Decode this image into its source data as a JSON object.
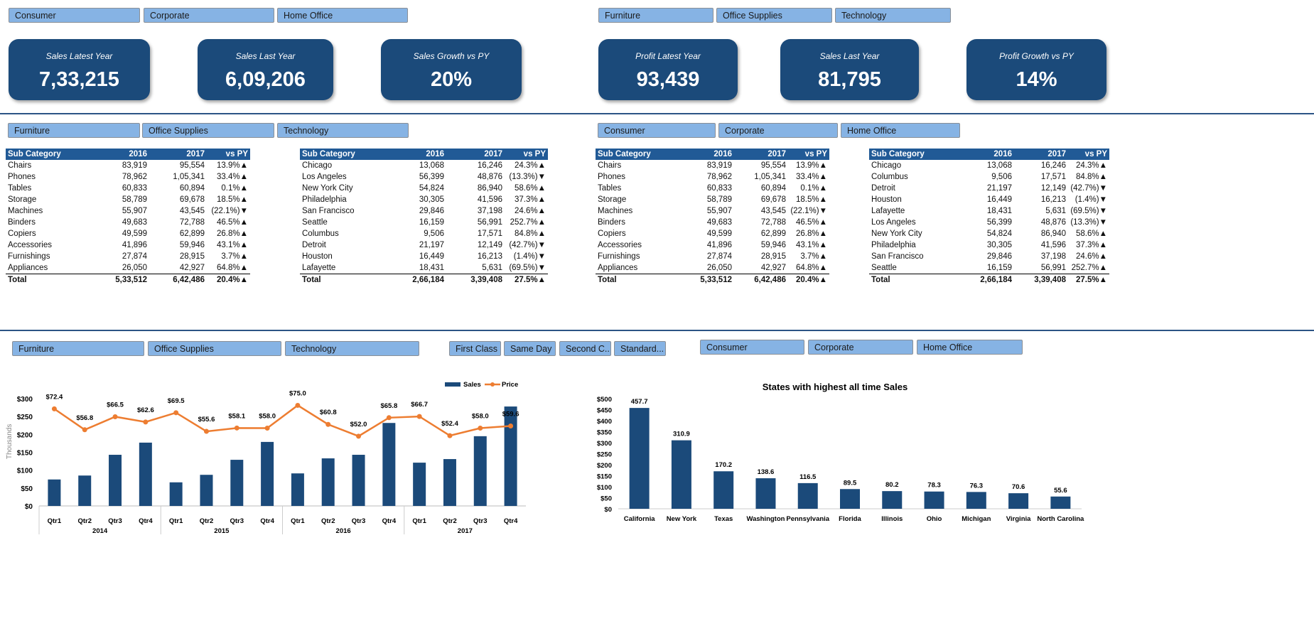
{
  "slicers": {
    "top_segment": [
      "Consumer",
      "Corporate",
      "Home Office"
    ],
    "top_category": [
      "Furniture",
      "Office Supplies",
      "Technology"
    ],
    "mid_category": [
      "Furniture",
      "Office Supplies",
      "Technology"
    ],
    "mid_segment": [
      "Consumer",
      "Corporate",
      "Home Office"
    ],
    "bottom_category": [
      "Furniture",
      "Office Supplies",
      "Technology"
    ],
    "ship_mode": [
      "First Class",
      "Same Day",
      "Second C...",
      "Standard..."
    ],
    "bottom_segment": [
      "Consumer",
      "Corporate",
      "Home Office"
    ]
  },
  "kpis": [
    {
      "title": "Sales Latest Year",
      "value": "7,33,215"
    },
    {
      "title": "Sales Last Year",
      "value": "6,09,206"
    },
    {
      "title": "Sales Growth vs PY",
      "value": "20%"
    },
    {
      "title": "Profit Latest Year",
      "value": "93,439"
    },
    {
      "title": "Sales Last Year",
      "value": "81,795"
    },
    {
      "title": "Profit Growth vs PY",
      "value": "14%"
    }
  ],
  "colors": {
    "card": "#1b4a7a",
    "header": "#215a96",
    "slicer": "#86b3e4",
    "bar": "#1b4a7a",
    "line": "#ed7d31",
    "positive": "#1a1aff",
    "negative": "#ff1a1a"
  },
  "tables": [
    {
      "headers": [
        "Sub Category",
        "2016",
        "2017",
        "vs PY"
      ],
      "rows": [
        [
          "Chairs",
          "83,919",
          "95,554",
          "13.9%",
          "up"
        ],
        [
          "Phones",
          "78,962",
          "1,05,341",
          "33.4%",
          "up"
        ],
        [
          "Tables",
          "60,833",
          "60,894",
          "0.1%",
          "up"
        ],
        [
          "Storage",
          "58,789",
          "69,678",
          "18.5%",
          "up"
        ],
        [
          "Machines",
          "55,907",
          "43,545",
          "(22.1%)",
          "down"
        ],
        [
          "Binders",
          "49,683",
          "72,788",
          "46.5%",
          "up"
        ],
        [
          "Copiers",
          "49,599",
          "62,899",
          "26.8%",
          "up"
        ],
        [
          "Accessories",
          "41,896",
          "59,946",
          "43.1%",
          "up"
        ],
        [
          "Furnishings",
          "27,874",
          "28,915",
          "3.7%",
          "up"
        ],
        [
          "Appliances",
          "26,050",
          "42,927",
          "64.8%",
          "up"
        ]
      ],
      "total": [
        "Total",
        "5,33,512",
        "6,42,486",
        "20.4%",
        "up"
      ]
    },
    {
      "headers": [
        "Sub Category",
        "2016",
        "2017",
        "vs PY"
      ],
      "rows": [
        [
          "Chicago",
          "13,068",
          "16,246",
          "24.3%",
          "up"
        ],
        [
          "Los Angeles",
          "56,399",
          "48,876",
          "(13.3%)",
          "down"
        ],
        [
          "New York City",
          "54,824",
          "86,940",
          "58.6%",
          "up"
        ],
        [
          "Philadelphia",
          "30,305",
          "41,596",
          "37.3%",
          "up"
        ],
        [
          "San Francisco",
          "29,846",
          "37,198",
          "24.6%",
          "up"
        ],
        [
          "Seattle",
          "16,159",
          "56,991",
          "252.7%",
          "up"
        ],
        [
          "Columbus",
          "9,506",
          "17,571",
          "84.8%",
          "up"
        ],
        [
          "Detroit",
          "21,197",
          "12,149",
          "(42.7%)",
          "down"
        ],
        [
          "Houston",
          "16,449",
          "16,213",
          "(1.4%)",
          "down"
        ],
        [
          "Lafayette",
          "18,431",
          "5,631",
          "(69.5%)",
          "down"
        ]
      ],
      "total": [
        "Total",
        "2,66,184",
        "3,39,408",
        "27.5%",
        "up"
      ]
    },
    {
      "headers": [
        "Sub Category",
        "2016",
        "2017",
        "vs PY"
      ],
      "rows": [
        [
          "Chairs",
          "83,919",
          "95,554",
          "13.9%",
          "up"
        ],
        [
          "Phones",
          "78,962",
          "1,05,341",
          "33.4%",
          "up"
        ],
        [
          "Tables",
          "60,833",
          "60,894",
          "0.1%",
          "up"
        ],
        [
          "Storage",
          "58,789",
          "69,678",
          "18.5%",
          "up"
        ],
        [
          "Machines",
          "55,907",
          "43,545",
          "(22.1%)",
          "down"
        ],
        [
          "Binders",
          "49,683",
          "72,788",
          "46.5%",
          "up"
        ],
        [
          "Copiers",
          "49,599",
          "62,899",
          "26.8%",
          "up"
        ],
        [
          "Accessories",
          "41,896",
          "59,946",
          "43.1%",
          "up"
        ],
        [
          "Furnishings",
          "27,874",
          "28,915",
          "3.7%",
          "up"
        ],
        [
          "Appliances",
          "26,050",
          "42,927",
          "64.8%",
          "up"
        ]
      ],
      "total": [
        "Total",
        "5,33,512",
        "6,42,486",
        "20.4%",
        "up"
      ]
    },
    {
      "headers": [
        "Sub Category",
        "2016",
        "2017",
        "vs PY"
      ],
      "rows": [
        [
          "Chicago",
          "13,068",
          "16,246",
          "24.3%",
          "up"
        ],
        [
          "Columbus",
          "9,506",
          "17,571",
          "84.8%",
          "up"
        ],
        [
          "Detroit",
          "21,197",
          "12,149",
          "(42.7%)",
          "down"
        ],
        [
          "Houston",
          "16,449",
          "16,213",
          "(1.4%)",
          "down"
        ],
        [
          "Lafayette",
          "18,431",
          "5,631",
          "(69.5%)",
          "down"
        ],
        [
          "Los Angeles",
          "56,399",
          "48,876",
          "(13.3%)",
          "down"
        ],
        [
          "New York City",
          "54,824",
          "86,940",
          "58.6%",
          "up"
        ],
        [
          "Philadelphia",
          "30,305",
          "41,596",
          "37.3%",
          "up"
        ],
        [
          "San Francisco",
          "29,846",
          "37,198",
          "24.6%",
          "up"
        ],
        [
          "Seattle",
          "16,159",
          "56,991",
          "252.7%",
          "up"
        ]
      ],
      "total": [
        "Total",
        "2,66,184",
        "3,39,408",
        "27.5%",
        "up"
      ]
    }
  ],
  "chart_data": [
    {
      "type": "bar+line",
      "ylabel": "Thousands",
      "y_ticks": [
        "$0",
        "$50",
        "$100",
        "$150",
        "$200",
        "$250",
        "$300"
      ],
      "ylim": [
        0,
        300
      ],
      "secondary_ylim": [
        0,
        80
      ],
      "years": [
        "2014",
        "2015",
        "2016",
        "2017"
      ],
      "quarters": [
        "Qtr1",
        "Qtr2",
        "Qtr3",
        "Qtr4"
      ],
      "series": [
        {
          "name": "Sales",
          "type": "bar",
          "values": [
            74,
            85,
            143,
            177,
            66,
            87,
            129,
            179,
            91,
            133,
            143,
            232,
            121,
            131,
            195,
            278
          ]
        },
        {
          "name": "Price",
          "type": "line",
          "values": [
            72.4,
            56.8,
            66.5,
            62.6,
            69.5,
            55.6,
            58.1,
            58.0,
            75.0,
            60.8,
            52.0,
            65.8,
            66.7,
            52.4,
            58.0,
            59.6
          ],
          "labels": [
            "$72.4",
            "$56.8",
            "$66.5",
            "$62.6",
            "$69.5",
            "$55.6",
            "$58.1",
            "$58.0",
            "$75.0",
            "$60.8",
            "$52.0",
            "$65.8",
            "$66.7",
            "$52.4",
            "$58.0",
            "$59.6"
          ]
        }
      ],
      "legend": "top-right"
    },
    {
      "type": "bar",
      "title": "States with highest all time Sales",
      "categories": [
        "California",
        "New York",
        "Texas",
        "Washington",
        "Pennsylvania",
        "Florida",
        "Illinois",
        "Ohio",
        "Michigan",
        "Virginia",
        "North Carolina"
      ],
      "values": [
        457.7,
        310.9,
        170.2,
        138.6,
        116.5,
        89.5,
        80.2,
        78.3,
        76.3,
        70.6,
        55.6
      ],
      "ylim": [
        0,
        500
      ],
      "y_ticks": [
        "$0",
        "$50",
        "$100",
        "$150",
        "$200",
        "$250",
        "$300",
        "$350",
        "$400",
        "$450",
        "$500"
      ]
    }
  ]
}
